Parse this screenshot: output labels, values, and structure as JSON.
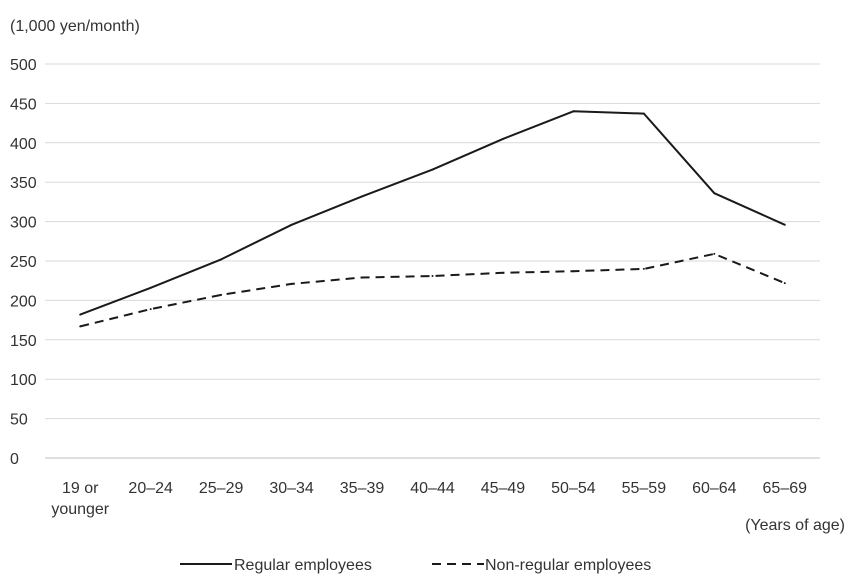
{
  "chart_data": {
    "type": "line",
    "title": "",
    "ylabel": "(1,000 yen/month)",
    "xlabel": "(Years of age)",
    "ylim": [
      0,
      500
    ],
    "yticks": [
      0,
      50,
      100,
      150,
      200,
      250,
      300,
      350,
      400,
      450,
      500
    ],
    "grid": true,
    "legend_position": "bottom",
    "categories": [
      "19 or younger",
      "20–24",
      "25–29",
      "30–34",
      "35–39",
      "40–44",
      "45–49",
      "50–54",
      "55–59",
      "60–64",
      "65–69"
    ],
    "category_lines": [
      [
        "19 or",
        "younger"
      ],
      [
        "20–24"
      ],
      [
        "25–29"
      ],
      [
        "30–34"
      ],
      [
        "35–39"
      ],
      [
        "40–44"
      ],
      [
        "45–49"
      ],
      [
        "50–54"
      ],
      [
        "55–59"
      ],
      [
        "60–64"
      ],
      [
        "65–69"
      ]
    ],
    "series": [
      {
        "name": "Regular employees",
        "style": "solid",
        "values": [
          182,
          216,
          252,
          296,
          332,
          366,
          405,
          440,
          437,
          336,
          296
        ]
      },
      {
        "name": "Non-regular employees",
        "style": "dashed",
        "values": [
          167,
          189,
          207,
          221,
          229,
          231,
          235,
          237,
          240,
          259,
          222
        ]
      }
    ],
    "colors": {
      "line": "#1a1a1a",
      "grid": "#d9d9d9",
      "text": "#333333"
    }
  }
}
